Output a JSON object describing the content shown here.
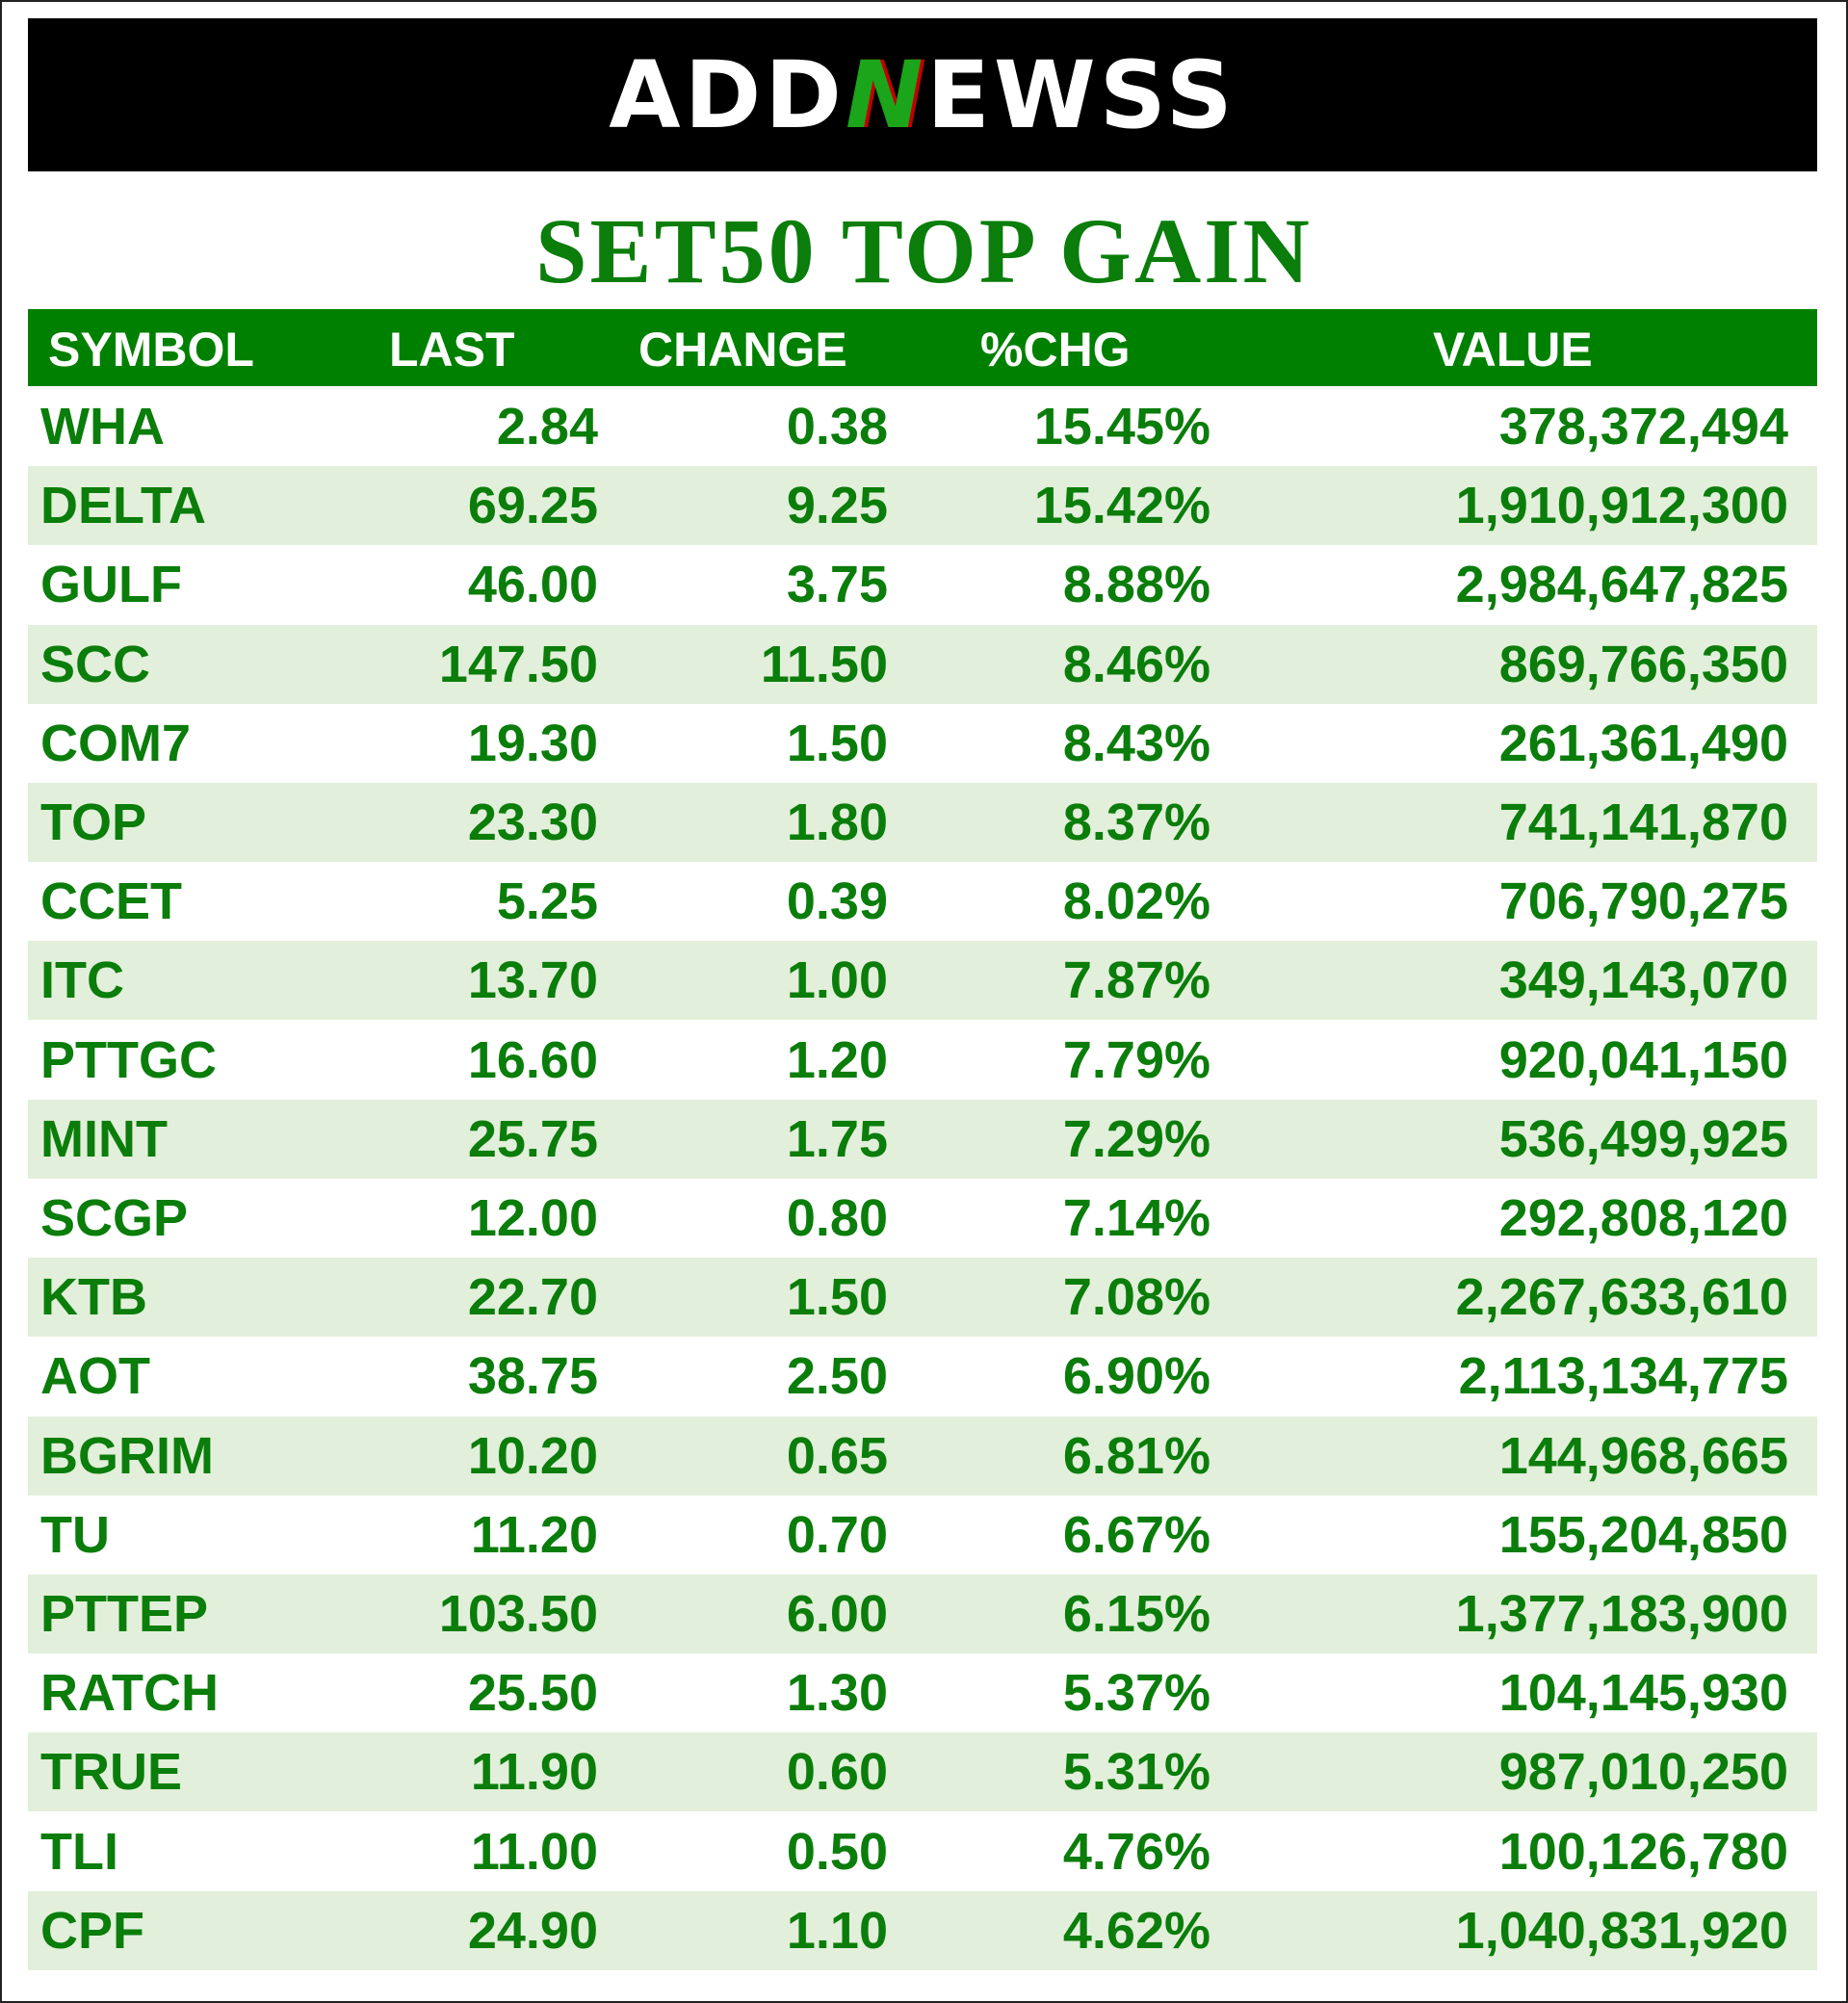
{
  "logo": [
    "ADD",
    "N",
    "EWSS"
  ],
  "title": "SET50 TOP GAIN",
  "table": {
    "headers": [
      "SYMBOL",
      "LAST",
      "CHANGE",
      "%CHG",
      "VALUE"
    ],
    "rows": [
      [
        "WHA",
        "2.84",
        "0.38",
        "15.45%",
        "378,372,494"
      ],
      [
        "DELTA",
        "69.25",
        "9.25",
        "15.42%",
        "1,910,912,300"
      ],
      [
        "GULF",
        "46.00",
        "3.75",
        "8.88%",
        "2,984,647,825"
      ],
      [
        "SCC",
        "147.50",
        "11.50",
        "8.46%",
        "869,766,350"
      ],
      [
        "COM7",
        "19.30",
        "1.50",
        "8.43%",
        "261,361,490"
      ],
      [
        "TOP",
        "23.30",
        "1.80",
        "8.37%",
        "741,141,870"
      ],
      [
        "CCET",
        "5.25",
        "0.39",
        "8.02%",
        "706,790,275"
      ],
      [
        "ITC",
        "13.70",
        "1.00",
        "7.87%",
        "349,143,070"
      ],
      [
        "PTTGC",
        "16.60",
        "1.20",
        "7.79%",
        "920,041,150"
      ],
      [
        "MINT",
        "25.75",
        "1.75",
        "7.29%",
        "536,499,925"
      ],
      [
        "SCGP",
        "12.00",
        "0.80",
        "7.14%",
        "292,808,120"
      ],
      [
        "KTB",
        "22.70",
        "1.50",
        "7.08%",
        "2,267,633,610"
      ],
      [
        "AOT",
        "38.75",
        "2.50",
        "6.90%",
        "2,113,134,775"
      ],
      [
        "BGRIM",
        "10.20",
        "0.65",
        "6.81%",
        "144,968,665"
      ],
      [
        "TU",
        "11.20",
        "0.70",
        "6.67%",
        "155,204,850"
      ],
      [
        "PTTEP",
        "103.50",
        "6.00",
        "6.15%",
        "1,377,183,900"
      ],
      [
        "RATCH",
        "25.50",
        "1.30",
        "5.37%",
        "104,145,930"
      ],
      [
        "TRUE",
        "11.90",
        "0.60",
        "5.31%",
        "987,010,250"
      ],
      [
        "TLI",
        "11.00",
        "0.50",
        "4.76%",
        "100,126,780"
      ],
      [
        "CPF",
        "24.90",
        "1.10",
        "4.62%",
        "1,040,831,920"
      ]
    ]
  }
}
